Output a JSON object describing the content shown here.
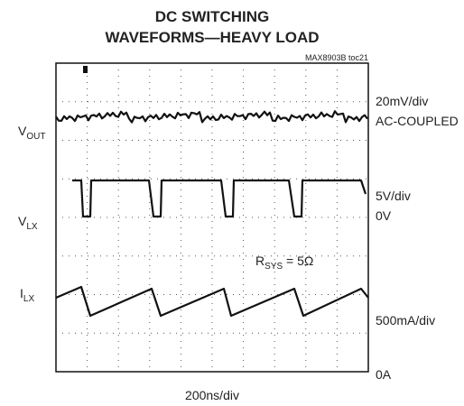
{
  "title": [
    "DC SWITCHING",
    "WAVEFORMS—HEAVY LOAD"
  ],
  "figure_id": "MAX8903B toc21",
  "channels": [
    {
      "label": {
        "main": "V",
        "sub": "OUT"
      },
      "scale": "20mV/div",
      "coupling": "AC-COUPLED"
    },
    {
      "label": {
        "main": "V",
        "sub": "LX"
      },
      "scale": "5V/div",
      "ground": "0V"
    },
    {
      "label": {
        "main": "I",
        "sub": "LX"
      },
      "scale": "500mA/div",
      "ground": "0A"
    }
  ],
  "annotation": {
    "main": "R",
    "sub": "SYS",
    "rest": " = 5Ω"
  },
  "timebase": "200ns/div"
}
